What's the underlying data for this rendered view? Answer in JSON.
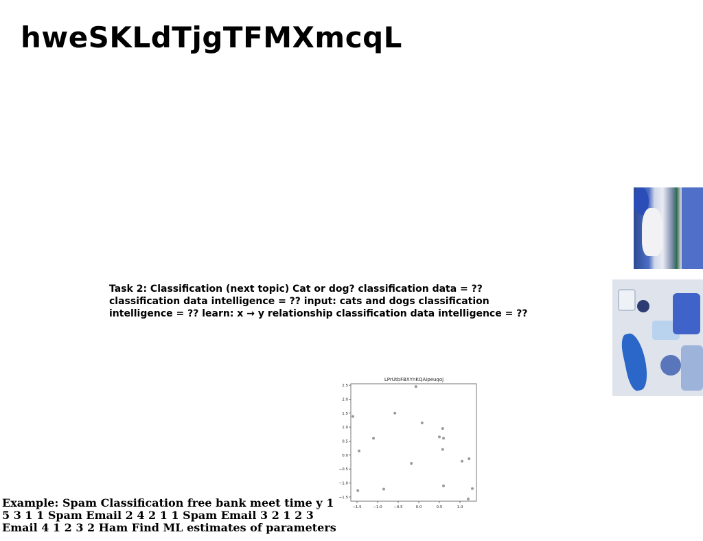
{
  "slide": {
    "title": "hweSKLdTjgTFMXmcqL",
    "task_text": "Task 2: Classification (next topic) Cat or dog? classification data = ?? classification data intelligence = ?? input: cats and dogs classification intelligence = ?? learn: x → y relationship classification data intelligence = ??",
    "example_text": "Example: Spam Classification free bank meet time y 1 5 3 1 1 Spam Email 2 4 2 1 1 Spam Email 3 2 1 2 3 Email 4 1 2 3 2 Ham Find ML estimates of parameters"
  },
  "images": [
    {
      "name": "blue-art-photo"
    },
    {
      "name": "blue-food-photo"
    }
  ],
  "chart_data": {
    "type": "scatter",
    "title": "LPrUtbFBXYnKQAipeuqoj",
    "xlabel": "",
    "ylabel": "",
    "xlim": [
      -1.65,
      1.4
    ],
    "ylim": [
      -1.65,
      2.55
    ],
    "xticks": [
      -1.5,
      -1.0,
      -0.5,
      0.0,
      0.5,
      1.0
    ],
    "xtick_labels": [
      "−1.5",
      "−1.0",
      "−0.5",
      "0.0",
      "0.5",
      "1.0"
    ],
    "yticks": [
      2.5,
      2.0,
      1.5,
      1.0,
      0.5,
      0.0,
      -0.5,
      -1.0,
      -1.5
    ],
    "ytick_labels": [
      "2.5",
      "2.0",
      "1.5",
      "1.0",
      "0.5",
      "0.0",
      "−0.5",
      "−1.0",
      "−1.5"
    ],
    "grid": false,
    "point_color": "#9a9a9a",
    "points": [
      {
        "x": -1.6,
        "y": 1.38
      },
      {
        "x": -1.45,
        "y": 0.15
      },
      {
        "x": -1.48,
        "y": -1.27
      },
      {
        "x": -1.1,
        "y": 0.6
      },
      {
        "x": -0.85,
        "y": -1.22
      },
      {
        "x": -0.58,
        "y": 1.5
      },
      {
        "x": -0.18,
        "y": -0.3
      },
      {
        "x": -0.07,
        "y": 2.45
      },
      {
        "x": 0.08,
        "y": 1.15
      },
      {
        "x": 0.5,
        "y": 0.65
      },
      {
        "x": 0.58,
        "y": 0.95
      },
      {
        "x": 0.6,
        "y": 0.6
      },
      {
        "x": 0.58,
        "y": 0.2
      },
      {
        "x": 0.6,
        "y": -1.1
      },
      {
        "x": 1.05,
        "y": -0.22
      },
      {
        "x": 1.22,
        "y": -0.13
      },
      {
        "x": 1.2,
        "y": -1.57
      },
      {
        "x": 1.3,
        "y": -1.2
      }
    ]
  }
}
